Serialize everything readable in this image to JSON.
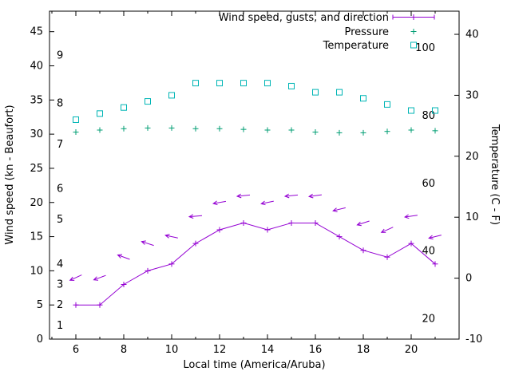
{
  "chart_data": {
    "type": "line",
    "title": "",
    "xlabel": "Local time (America/Aruba)",
    "ylabel_left": "Wind speed (kn - Beaufort)",
    "ylabel_right": "Temperature (C - F)",
    "grid": false,
    "legend_position": "top-right-inside",
    "x_range": [
      4.9,
      22.0
    ],
    "y_left_range": [
      0,
      48
    ],
    "y_right_range": [
      -10,
      43.8
    ],
    "x_major_ticks": [
      6,
      8,
      10,
      12,
      14,
      16,
      18,
      20
    ],
    "x_minor_ticks": [
      5,
      7,
      9,
      11,
      13,
      15,
      17,
      19,
      21
    ],
    "y_left_ticks": [
      0,
      5,
      10,
      15,
      20,
      25,
      30,
      35,
      40,
      45
    ],
    "y_right_ticks": [
      -10,
      0,
      10,
      20,
      30,
      40
    ],
    "beaufort_scale_labels": [
      {
        "label": "1",
        "kn": 2
      },
      {
        "label": "2",
        "kn": 5
      },
      {
        "label": "3",
        "kn": 8
      },
      {
        "label": "4",
        "kn": 11
      },
      {
        "label": "5",
        "kn": 17.5
      },
      {
        "label": "6",
        "kn": 22
      },
      {
        "label": "7",
        "kn": 28.5
      },
      {
        "label": "8",
        "kn": 34.5
      },
      {
        "label": "9",
        "kn": 41.5
      }
    ],
    "fahrenheit_scale_labels": [
      {
        "label": "20",
        "f": 20
      },
      {
        "label": "40",
        "f": 40
      },
      {
        "label": "60",
        "f": 60
      },
      {
        "label": "80",
        "f": 80
      },
      {
        "label": "100",
        "f": 100
      }
    ],
    "x": [
      6,
      7,
      8,
      9,
      10,
      11,
      12,
      13,
      14,
      15,
      16,
      17,
      18,
      19,
      20,
      21
    ],
    "series": [
      {
        "name": "Wind speed, gusts, and direction",
        "marker": "plus-line-vectors",
        "axis": "left",
        "color": "#9400d3",
        "values": [
          5,
          5,
          8,
          10,
          11,
          14,
          16,
          17,
          16,
          17,
          17,
          15,
          13,
          12,
          14,
          11
        ],
        "gusts": [
          9,
          9,
          12,
          14,
          15,
          18,
          20,
          21,
          20,
          21,
          21,
          19,
          17,
          16,
          18,
          15
        ],
        "arrow_angles_deg": [
          205,
          200,
          160,
          162,
          168,
          185,
          190,
          186,
          192,
          186,
          188,
          194,
          198,
          204,
          188,
          194
        ]
      },
      {
        "name": "Pressure",
        "marker": "plus",
        "axis": "left",
        "color": "#009e73",
        "values": [
          30.3,
          30.6,
          30.8,
          30.9,
          30.9,
          30.8,
          30.8,
          30.7,
          30.6,
          30.6,
          30.3,
          30.2,
          30.2,
          30.4,
          30.6,
          30.5
        ]
      },
      {
        "name": "Temperature",
        "marker": "square",
        "axis": "right",
        "color": "#00b5b5",
        "values": [
          26,
          27,
          28,
          29,
          30,
          32,
          32,
          32,
          32,
          31.5,
          30.5,
          30.5,
          29.5,
          28.5,
          27.5,
          27.5
        ]
      }
    ]
  }
}
